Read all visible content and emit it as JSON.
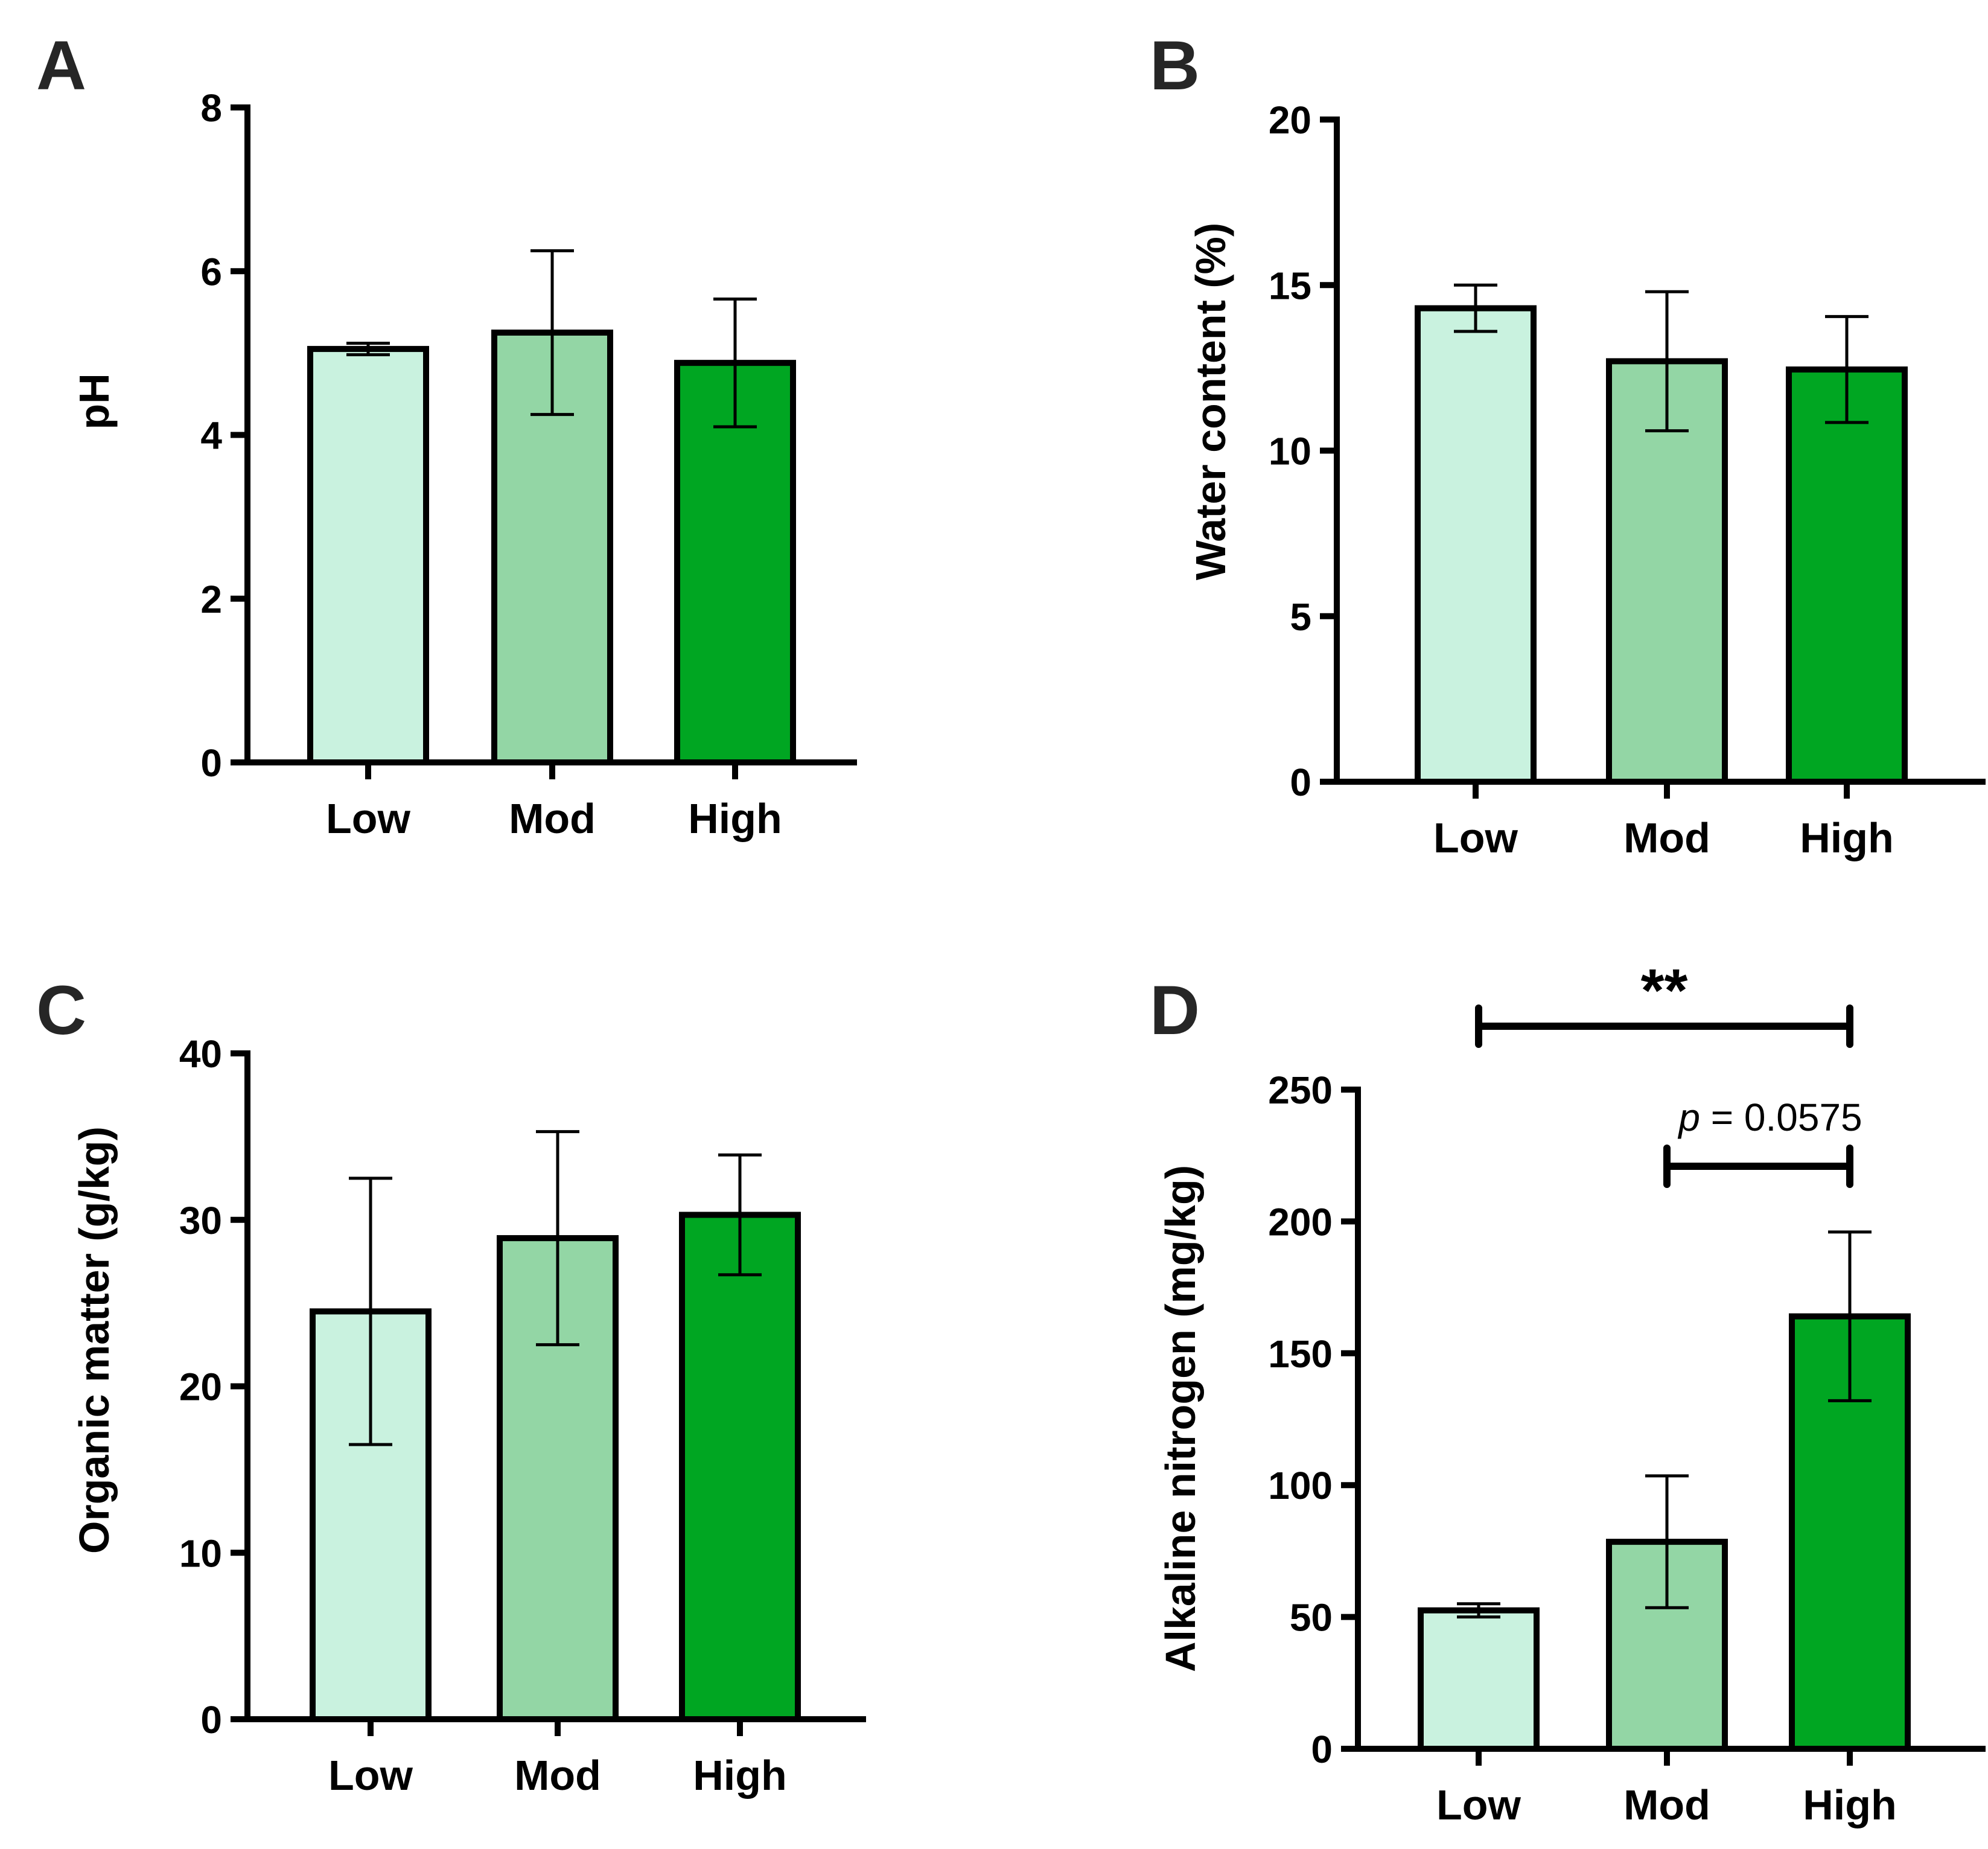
{
  "chart_data": [
    {
      "panel": "A",
      "type": "bar",
      "categories": [
        "Low",
        "Mod",
        "High"
      ],
      "values": [
        5.05,
        5.25,
        4.88
      ],
      "errors": [
        0.07,
        1.0,
        0.78
      ],
      "ylabel": "pH",
      "ylim": [
        0,
        8
      ],
      "yticks": [
        "0",
        "2",
        "4",
        "6",
        "8"
      ],
      "ytick_values": [
        0,
        2,
        4,
        6,
        8
      ],
      "colors": [
        "#c9f2df",
        "#93d6a5",
        "#00a622"
      ],
      "annotations": []
    },
    {
      "panel": "B",
      "type": "bar",
      "categories": [
        "Low",
        "Mod",
        "High"
      ],
      "values": [
        14.3,
        12.7,
        12.45
      ],
      "errors": [
        0.7,
        2.1,
        1.6
      ],
      "ylabel": "Water content (%)",
      "ylim": [
        0,
        20
      ],
      "yticks": [
        "0",
        "5",
        "10",
        "15",
        "20"
      ],
      "ytick_values": [
        0,
        5,
        10,
        15,
        20
      ],
      "colors": [
        "#c9f2df",
        "#93d6a5",
        "#00a622"
      ],
      "annotations": []
    },
    {
      "panel": "C",
      "type": "bar",
      "categories": [
        "Low",
        "Mod",
        "High"
      ],
      "values": [
        24.5,
        28.9,
        30.3
      ],
      "errors": [
        8.0,
        6.4,
        3.6
      ],
      "ylabel": "Organic matter (g/kg)",
      "ylim": [
        0,
        40
      ],
      "yticks": [
        "0",
        "10",
        "20",
        "30",
        "40"
      ],
      "ytick_values": [
        0,
        10,
        20,
        30,
        40
      ],
      "colors": [
        "#c9f2df",
        "#93d6a5",
        "#00a622"
      ],
      "annotations": []
    },
    {
      "panel": "D",
      "type": "bar",
      "categories": [
        "Low",
        "Mod",
        "High"
      ],
      "values": [
        52.5,
        78.5,
        164
      ],
      "errors": [
        2.5,
        25,
        32
      ],
      "ylabel": "Alkaline nitrogen (mg/kg)",
      "ylim": [
        0,
        250
      ],
      "yticks": [
        "0",
        "50",
        "100",
        "150",
        "200",
        "250"
      ],
      "ytick_values": [
        0,
        50,
        100,
        150,
        200,
        250
      ],
      "colors": [
        "#c9f2df",
        "#93d6a5",
        "#00a622"
      ],
      "annotations": [
        {
          "from": "Low",
          "to": "High",
          "label": "**"
        },
        {
          "from": "Mod",
          "to": "High",
          "label_prefix": "p",
          "label": " = 0.0575"
        }
      ]
    }
  ]
}
